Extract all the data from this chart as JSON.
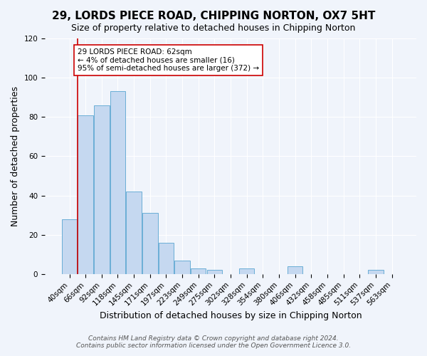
{
  "title": "29, LORDS PIECE ROAD, CHIPPING NORTON, OX7 5HT",
  "subtitle": "Size of property relative to detached houses in Chipping Norton",
  "xlabel": "Distribution of detached houses by size in Chipping Norton",
  "ylabel": "Number of detached properties",
  "bin_labels": [
    "40sqm",
    "66sqm",
    "92sqm",
    "118sqm",
    "145sqm",
    "171sqm",
    "197sqm",
    "223sqm",
    "249sqm",
    "275sqm",
    "302sqm",
    "328sqm",
    "354sqm",
    "380sqm",
    "406sqm",
    "432sqm",
    "458sqm",
    "485sqm",
    "511sqm",
    "537sqm",
    "563sqm"
  ],
  "bar_values": [
    28,
    81,
    86,
    93,
    42,
    31,
    16,
    7,
    3,
    2,
    0,
    3,
    0,
    0,
    4,
    0,
    0,
    0,
    0,
    2,
    0
  ],
  "bar_color": "#c5d8f0",
  "bar_edge_color": "#6aaed6",
  "ylim": [
    0,
    120
  ],
  "yticks": [
    0,
    20,
    40,
    60,
    80,
    100,
    120
  ],
  "vline_x": 0,
  "vline_color": "#cc0000",
  "annotation_title": "29 LORDS PIECE ROAD: 62sqm",
  "annotation_line1": "← 4% of detached houses are smaller (16)",
  "annotation_line2": "95% of semi-detached houses are larger (372) →",
  "annotation_box_color": "#ffffff",
  "annotation_box_edge": "#cc0000",
  "footer1": "Contains HM Land Registry data © Crown copyright and database right 2024.",
  "footer2": "Contains public sector information licensed under the Open Government Licence 3.0.",
  "title_fontsize": 11,
  "subtitle_fontsize": 9,
  "xlabel_fontsize": 9,
  "ylabel_fontsize": 9,
  "tick_fontsize": 7.5,
  "footer_fontsize": 6.5,
  "bg_color": "#f0f4fb"
}
